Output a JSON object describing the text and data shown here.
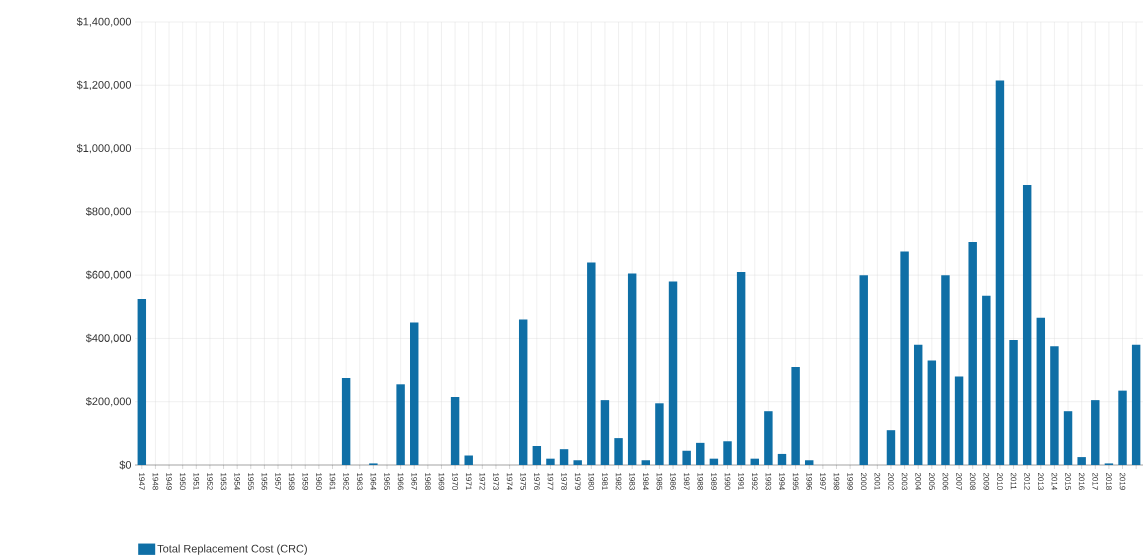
{
  "chart_data": {
    "type": "bar",
    "categories": [
      "1947",
      "1948",
      "1949",
      "1950",
      "1951",
      "1952",
      "1953",
      "1954",
      "1955",
      "1956",
      "1957",
      "1958",
      "1959",
      "1960",
      "1961",
      "1962",
      "1963",
      "1964",
      "1965",
      "1966",
      "1967",
      "1968",
      "1969",
      "1970",
      "1971",
      "1972",
      "1973",
      "1974",
      "1975",
      "1976",
      "1977",
      "1978",
      "1979",
      "1980",
      "1981",
      "1982",
      "1983",
      "1984",
      "1985",
      "1986",
      "1987",
      "1988",
      "1989",
      "1990",
      "1991",
      "1992",
      "1993",
      "1994",
      "1995",
      "1996",
      "1997",
      "1998",
      "1999",
      "2000",
      "2001",
      "2002",
      "2003",
      "2004",
      "2005",
      "2006",
      "2007",
      "2008",
      "2009",
      "2010",
      "2011",
      "2012",
      "2013",
      "2014",
      "2015",
      "2016",
      "2017",
      "2018",
      "2019",
      null
    ],
    "series": [
      {
        "name": "Total Replacement Cost (CRC)",
        "color": "#0f6fa6",
        "values": [
          525000,
          0,
          0,
          0,
          0,
          0,
          0,
          0,
          0,
          0,
          0,
          0,
          0,
          0,
          0,
          275000,
          0,
          5000,
          0,
          255000,
          450000,
          0,
          0,
          215000,
          30000,
          0,
          0,
          0,
          460000,
          60000,
          20000,
          50000,
          15000,
          640000,
          205000,
          85000,
          605000,
          15000,
          195000,
          580000,
          45000,
          70000,
          20000,
          75000,
          610000,
          20000,
          170000,
          35000,
          310000,
          15000,
          0,
          0,
          0,
          600000,
          0,
          110000,
          675000,
          380000,
          330000,
          600000,
          280000,
          705000,
          535000,
          1215000,
          395000,
          885000,
          465000,
          375000,
          170000,
          25000,
          205000,
          5000,
          235000,
          380000
        ]
      }
    ],
    "ylim": [
      0,
      1400000
    ],
    "yticks": [
      {
        "value": 0,
        "label": "$0"
      },
      {
        "value": 200000,
        "label": "$200,000"
      },
      {
        "value": 400000,
        "label": "$400,000"
      },
      {
        "value": 600000,
        "label": "$600,000"
      },
      {
        "value": 800000,
        "label": "$800,000"
      },
      {
        "value": 1000000,
        "label": "$1,000,000"
      },
      {
        "value": 1200000,
        "label": "$1,200,000"
      },
      {
        "value": 1400000,
        "label": "$1,400,000"
      }
    ],
    "grid": true,
    "legend": "bottom left"
  }
}
